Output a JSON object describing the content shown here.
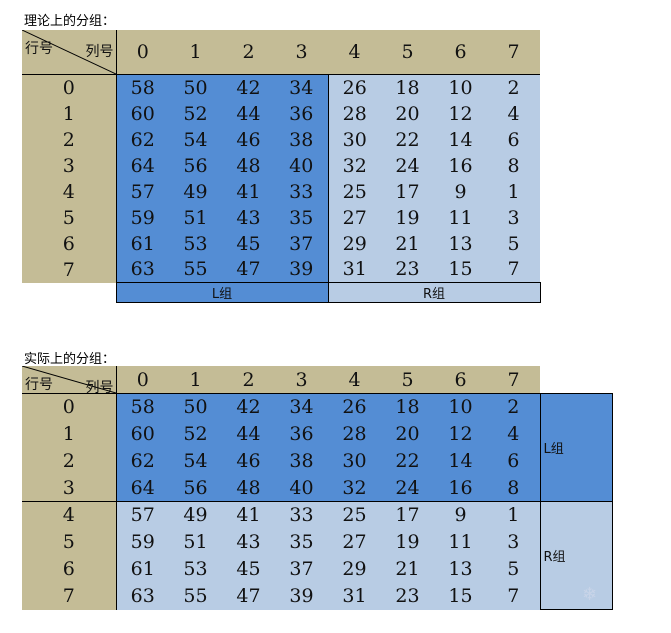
{
  "top": {
    "title": "理论上的分组：",
    "corner_row": "行号",
    "corner_col": "列号",
    "col_headers": [
      "0",
      "1",
      "2",
      "3",
      "4",
      "5",
      "6",
      "7"
    ],
    "rows": [
      {
        "label": "0",
        "cells": [
          "58",
          "50",
          "42",
          "34",
          "26",
          "18",
          "10",
          "2"
        ]
      },
      {
        "label": "1",
        "cells": [
          "60",
          "52",
          "44",
          "36",
          "28",
          "20",
          "12",
          "4"
        ]
      },
      {
        "label": "2",
        "cells": [
          "62",
          "54",
          "46",
          "38",
          "30",
          "22",
          "14",
          "6"
        ]
      },
      {
        "label": "3",
        "cells": [
          "64",
          "56",
          "48",
          "40",
          "32",
          "24",
          "16",
          "8"
        ]
      },
      {
        "label": "4",
        "cells": [
          "57",
          "49",
          "41",
          "33",
          "25",
          "17",
          "9",
          "1"
        ]
      },
      {
        "label": "5",
        "cells": [
          "59",
          "51",
          "43",
          "35",
          "27",
          "19",
          "11",
          "3"
        ]
      },
      {
        "label": "6",
        "cells": [
          "61",
          "53",
          "45",
          "37",
          "29",
          "21",
          "13",
          "5"
        ]
      },
      {
        "label": "7",
        "cells": [
          "63",
          "55",
          "47",
          "39",
          "31",
          "23",
          "15",
          "7"
        ]
      }
    ],
    "l_group": "L组",
    "r_group": "R组"
  },
  "bottom": {
    "title": "实际上的分组：",
    "corner_row": "行号",
    "corner_col": "列号",
    "col_headers": [
      "0",
      "1",
      "2",
      "3",
      "4",
      "5",
      "6",
      "7"
    ],
    "rows": [
      {
        "label": "0",
        "cells": [
          "58",
          "50",
          "42",
          "34",
          "26",
          "18",
          "10",
          "2"
        ]
      },
      {
        "label": "1",
        "cells": [
          "60",
          "52",
          "44",
          "36",
          "28",
          "20",
          "12",
          "4"
        ]
      },
      {
        "label": "2",
        "cells": [
          "62",
          "54",
          "46",
          "38",
          "30",
          "22",
          "14",
          "6"
        ]
      },
      {
        "label": "3",
        "cells": [
          "64",
          "56",
          "48",
          "40",
          "32",
          "24",
          "16",
          "8"
        ]
      },
      {
        "label": "4",
        "cells": [
          "57",
          "49",
          "41",
          "33",
          "25",
          "17",
          "9",
          "1"
        ]
      },
      {
        "label": "5",
        "cells": [
          "59",
          "51",
          "43",
          "35",
          "27",
          "19",
          "11",
          "3"
        ]
      },
      {
        "label": "6",
        "cells": [
          "61",
          "53",
          "45",
          "37",
          "29",
          "21",
          "13",
          "5"
        ]
      },
      {
        "label": "7",
        "cells": [
          "63",
          "55",
          "47",
          "39",
          "31",
          "23",
          "15",
          "7"
        ]
      }
    ],
    "l_group": "L组",
    "r_group": "R组"
  },
  "colors": {
    "tan": "#c4bc96",
    "dark_blue": "#548dd4",
    "light_blue": "#b8cce4"
  },
  "watermark_icon": "snowflake-icon"
}
